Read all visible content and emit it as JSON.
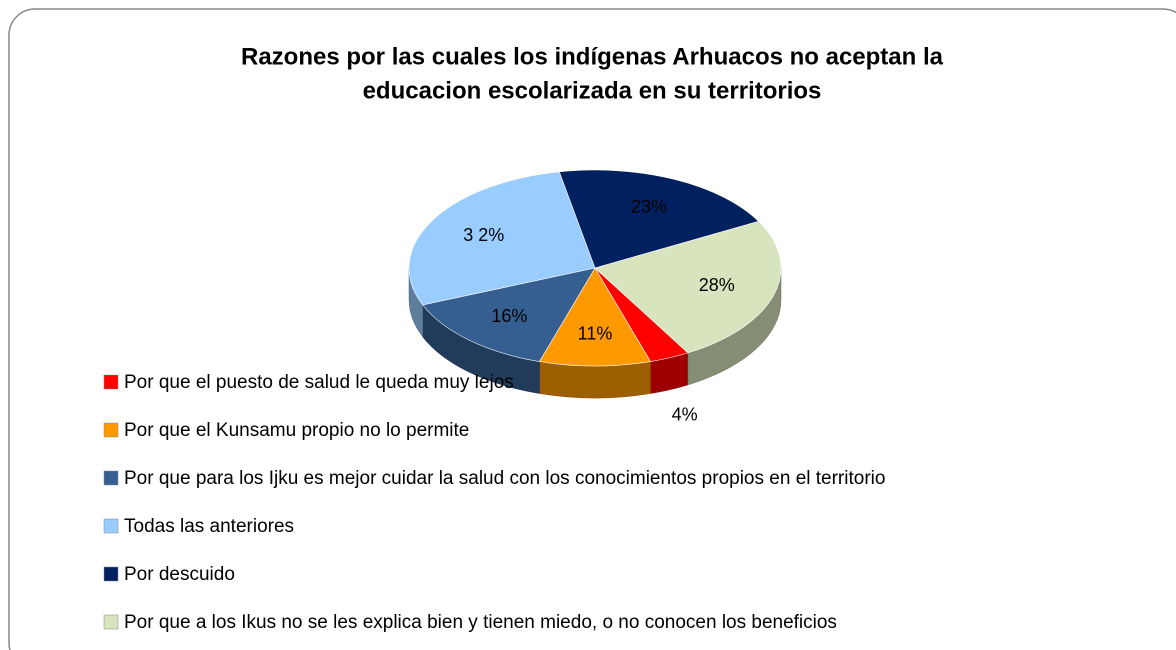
{
  "chart_data": {
    "type": "pie",
    "title": [
      "Razones por las cuales los indígenas Arhuacos no aceptan  la",
      "educacion escolarizada en su territorios"
    ],
    "categories": [
      "Por que el puesto de salud le queda muy lejos",
      "Por que el Kunsamu propio no lo permite",
      "Por que para los Ijku es mejor cuidar la salud con los conocimientos propios en el territorio",
      "Todas las anteriores",
      "Por descuido",
      "Por que a los Ikus no se les explica bien y tienen miedo, o no conocen los beneficios"
    ],
    "values": [
      4,
      11,
      16,
      32,
      23,
      28
    ],
    "value_labels": [
      "4%",
      "11%",
      "16%",
      "3 2%",
      "23%",
      "28%"
    ],
    "colors": [
      "#ff0000",
      "#ff9900",
      "#365f91",
      "#99ccff",
      "#002060",
      "#d7e4bd"
    ],
    "legend": "bottom"
  }
}
